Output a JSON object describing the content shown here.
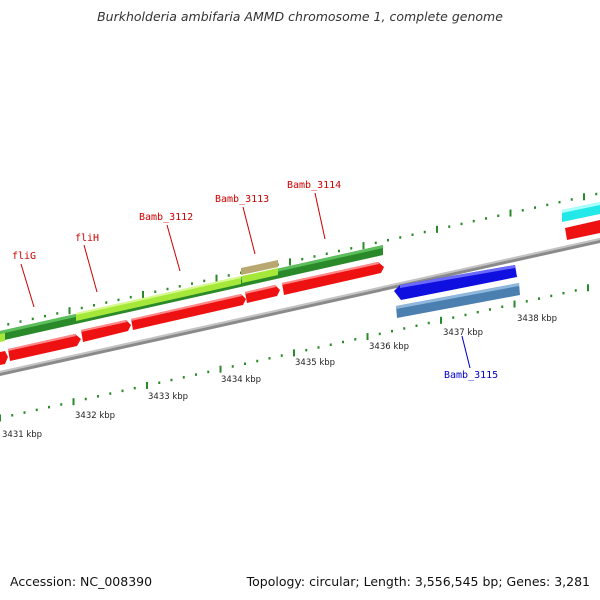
{
  "title": "Burkholderia ambifaria AMMD chromosome 1, complete genome",
  "footer": {
    "accession": "Accession: NC_008390",
    "summary": "Topology: circular; Length: 3,556,545 bp; Genes: 3,281"
  },
  "colors": {
    "backbone": "#8a8a8a",
    "tick": "#2a8a2a",
    "cds_red": "#ee1111",
    "gene_darkgreen": "#2a8a2a",
    "gene_lightgreen": "#a6e83a",
    "gene_tan": "#b8a870",
    "gene_blue": "#0f10e0",
    "gene_steelblue": "#4a7fb0",
    "gene_cyan": "#22e8e8",
    "label_red": "#cc0000",
    "label_blue": "#0000cc"
  },
  "kbp_labels": [
    "3431 kbp",
    "3432 kbp",
    "3433 kbp",
    "3434 kbp",
    "3435 kbp",
    "3436 kbp",
    "3437 kbp",
    "3438 kbp"
  ],
  "gene_labels": {
    "fliG": "fliG",
    "fliH": "fliH",
    "bamb3112": "Bamb_3112",
    "bamb3113": "Bamb_3113",
    "bamb3114": "Bamb_3114",
    "bamb3115": "Bamb_3115"
  }
}
